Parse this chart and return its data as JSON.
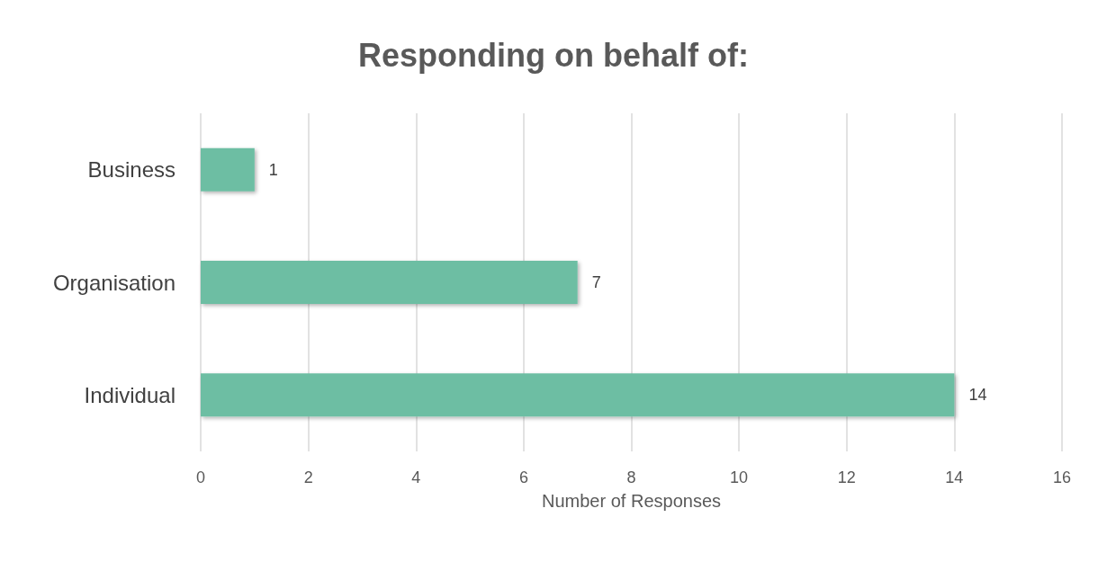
{
  "chart_data": {
    "type": "bar",
    "orientation": "horizontal",
    "title": "Responding on behalf of:",
    "xlabel": "Number of Responses",
    "categories": [
      "Business",
      "Organisation",
      "Individual"
    ],
    "values": [
      1,
      7,
      14
    ],
    "color": "#6dbea3",
    "xlim": [
      0,
      16
    ],
    "xticks": [
      0,
      2,
      4,
      6,
      8,
      10,
      12,
      14,
      16
    ],
    "grid": "x",
    "data_labels": true
  }
}
